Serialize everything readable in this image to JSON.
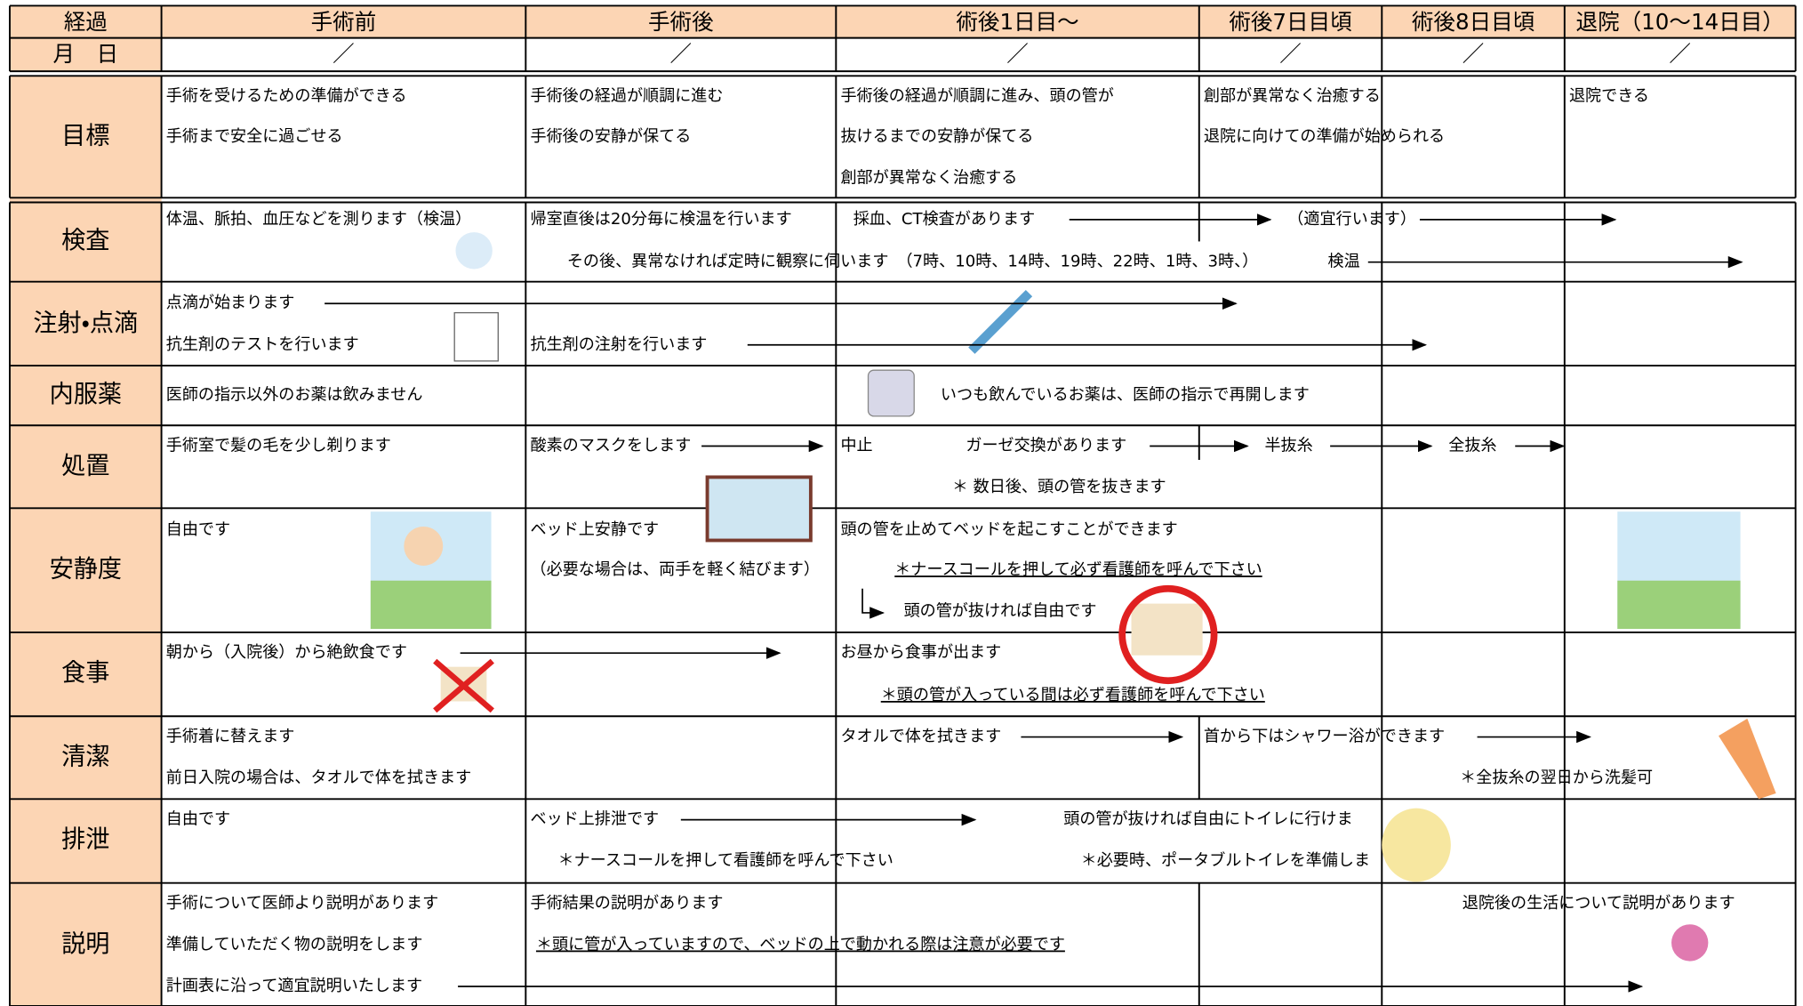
{
  "header": {
    "columns": [
      "経過",
      "手術前",
      "手術後",
      "術後1日目～",
      "術後7日目頃",
      "術後8日目頃",
      "退院（10～14日目）"
    ],
    "date_row": [
      "月　日",
      "／",
      "／",
      "／",
      "／",
      "／",
      "／"
    ]
  },
  "rows": [
    {
      "label": "目標",
      "items": [
        "手術を受けるための準備ができる",
        "手術まで安全に過ごせる",
        "手術後の経過が順調に進む",
        "手術後の安静が保てる",
        "手術後の経過が順調に進み、頭の管が",
        "抜けるまでの安静が保てる",
        "創部が異常なく治癒する",
        "創部が異常なく治癒する",
        "退院に向けての準備が始められる",
        "退院できる"
      ]
    },
    {
      "label": "検査",
      "items": [
        "体温、脈拍、血圧などを測ります（検温）",
        "帰室直後は20分毎に検温を行います",
        "採血、CT検査があります",
        "（適宜行います）",
        "その後、異常なければ定時に観察に伺います　（7時、10時、14時、19時、22時、1時、3時、）",
        "検温"
      ]
    },
    {
      "label": "注射・点滴",
      "items": [
        "点滴が始まります",
        "抗生剤のテストを行います",
        "抗生剤の注射を行います"
      ]
    },
    {
      "label": "内服薬",
      "items": [
        "医師の指示以外のお薬は飲みません",
        "いつも飲んでいるお薬は、医師の指示で再開します"
      ]
    },
    {
      "label": "処置",
      "items": [
        "手術室で髪の毛を少し剃ります",
        "酸素のマスクをします",
        "中止",
        "ガーゼ交換があります",
        "半抜糸",
        "全抜糸",
        "＊ 数日後、頭の管を抜きます"
      ]
    },
    {
      "label": "安静度",
      "items": [
        "自由です",
        "ベッド上安静です",
        "（必要な場合は、両手を軽く結びます）",
        "頭の管を止めてベッドを起こすことができます",
        "＊ナースコールを押して必ず看護師を呼んで下さい",
        "頭の管が抜ければ自由です"
      ]
    },
    {
      "label": "食事",
      "items": [
        "朝から（入院後）から絶飲食です",
        "お昼から食事が出ます",
        "＊頭の管が入っている間は必ず看護師を呼んで下さい"
      ]
    },
    {
      "label": "清潔",
      "items": [
        "手術着に替えます",
        "前日入院の場合は、タオルで体を拭きます",
        "タオルで体を拭きます",
        "首から下はシャワー浴ができます",
        "＊全抜糸の翌日から洗髪可"
      ]
    },
    {
      "label": "排泄",
      "items": [
        "自由です",
        "ベッド上排泄です",
        "＊ナースコールを押して看護師を呼んで下さい",
        "頭の管が抜ければ自由にトイレに行けま",
        "＊必要時、ポータブルトイレを準備しま"
      ]
    },
    {
      "label": "説明",
      "items": [
        "手術について医師より説明があります",
        "準備していただく物の説明をします",
        "計画表に沿って適宜説明いたします",
        "手術結果の説明があります",
        "＊頭に管が入っていますので、ベッドの上で動かれる際は注意が必要です",
        "退院後の生活について説明があります"
      ]
    }
  ]
}
